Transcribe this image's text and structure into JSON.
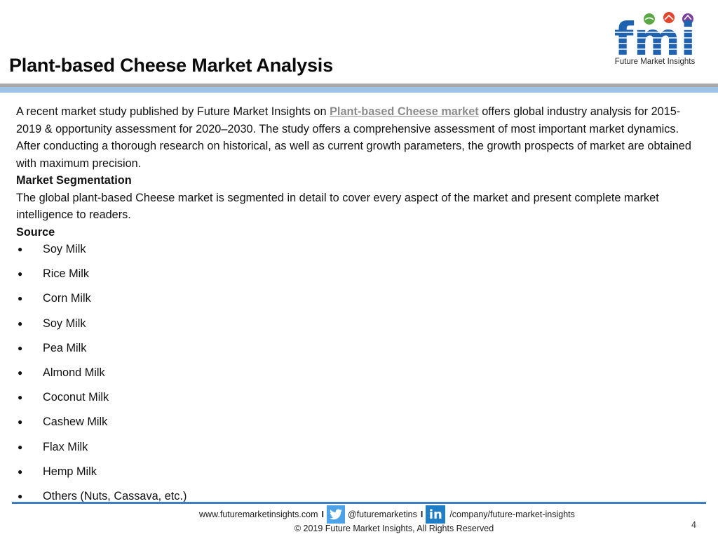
{
  "slide": {
    "title": "Plant-based Cheese Market Analysis",
    "page_number": "4"
  },
  "logo": {
    "letters": "fmi",
    "caption": "Future Market Insights",
    "colors": {
      "letters": "#1f62b0",
      "green": "#5aa843",
      "red": "#e2462e",
      "purple": "#7a3e9c"
    }
  },
  "intro": {
    "before_link": "A recent market study published by Future Market Insights on ",
    "link_text": "Plant-based Cheese market",
    "after_link": " offers global industry analysis for 2015-2019 & opportunity assessment for 2020–2030. The study offers a comprehensive assessment of most important market dynamics. After conducting a thorough research on historical, as well as current growth parameters, the growth prospects of market are obtained with maximum precision."
  },
  "segmentation": {
    "heading": "Market Segmentation",
    "text": "The global plant-based Cheese market is segmented in detail to cover every aspect of the market and present complete market intelligence to readers."
  },
  "source": {
    "heading": "Source",
    "items": [
      "Soy Milk",
      "Rice Milk",
      "Corn Milk",
      "Soy Milk",
      "Pea Milk",
      "Almond Milk",
      "Coconut Milk",
      "Cashew Milk",
      "Flax Milk",
      "Hemp Milk",
      "Others (Nuts, Cassava, etc.)"
    ]
  },
  "footer": {
    "website": "www.futuremarketinsights.com",
    "separator": "I",
    "twitter_handle": "@futuremarketins",
    "linkedin_path": "/company/future-market-insights",
    "linkedin_icon_text": "in",
    "copyright": "© 2019 Future Market Insights, All Rights Reserved"
  }
}
